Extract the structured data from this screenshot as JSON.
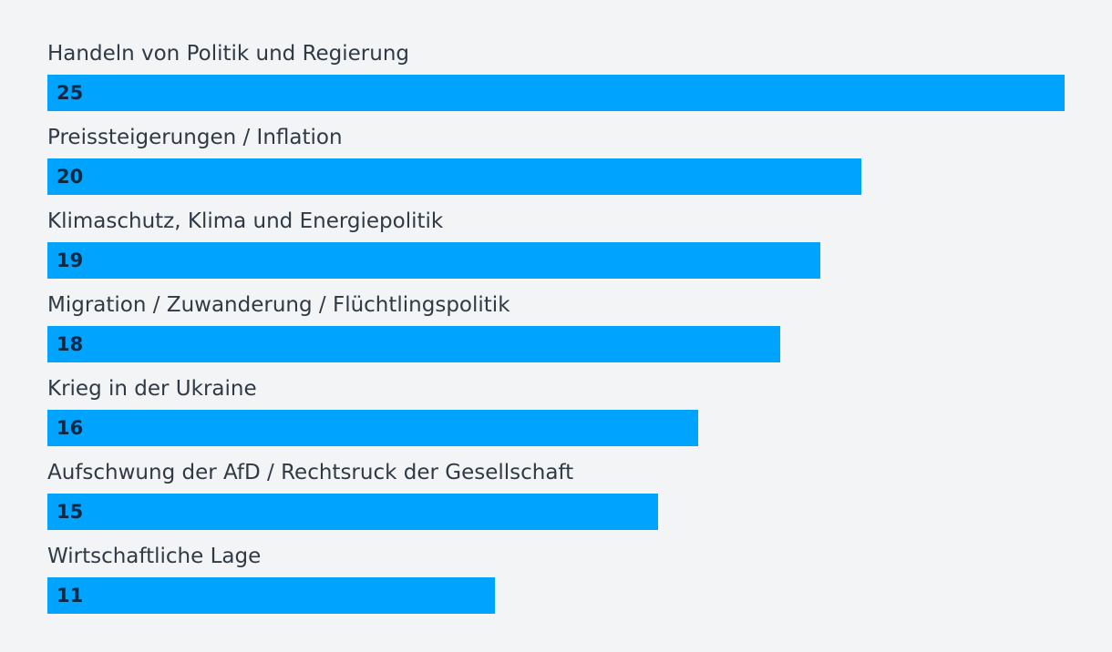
{
  "chart_data": {
    "type": "bar",
    "orientation": "horizontal",
    "categories": [
      "Handeln von Politik und Regierung",
      "Preissteigerungen / Inflation",
      "Klimaschutz, Klima und Energiepolitik",
      "Migration / Zuwanderung / Flüchtlingspolitik",
      "Krieg in der Ukraine",
      "Aufschwung der AfD / Rechtsruck der Gesellschaft",
      "Wirtschaftliche Lage"
    ],
    "values": [
      25,
      20,
      19,
      18,
      16,
      15,
      11
    ],
    "xlim": [
      0,
      25
    ],
    "bar_color": "#00a4ff",
    "label_color": "#2f3a45",
    "value_color": "#0d2a45",
    "grid": false,
    "title": "",
    "xlabel": "",
    "ylabel": ""
  }
}
